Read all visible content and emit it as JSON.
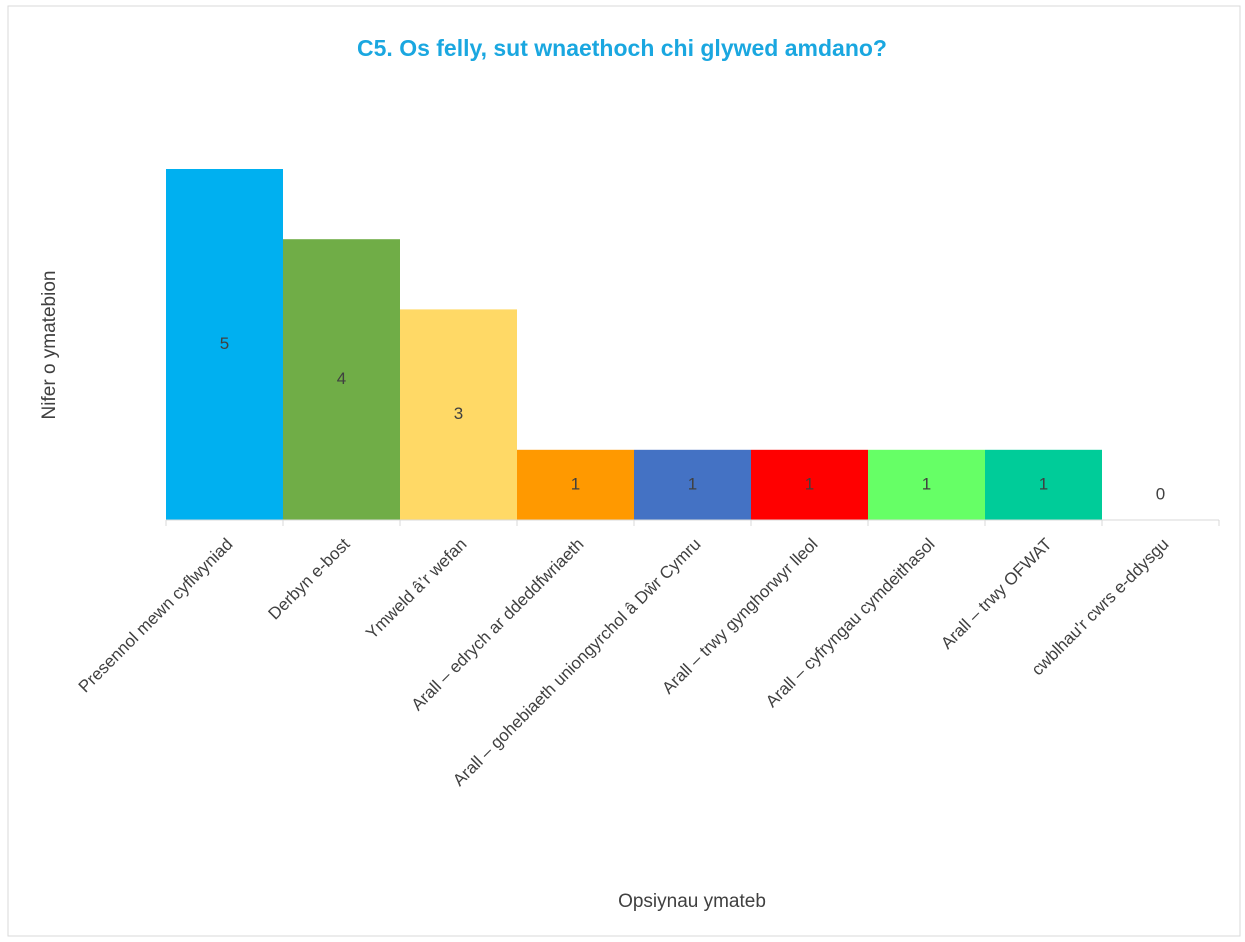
{
  "chart_data": {
    "type": "bar",
    "title": "C5. Os felly, sut wnaethoch chi glywed amdano?",
    "x_label": "Opsiynau ymateb",
    "y_label": "Nifer o ymatebion",
    "categories": [
      "Presennol mewn cyflwyniad",
      "Derbyn e-bost",
      "Ymweld â’r wefan",
      "Arall – edrych ar ddeddfwriaeth",
      "Arall – gohebiaeth uniongyrchol â Dŵr Cymru",
      "Arall – trwy gynghorwyr lleol",
      "Arall – cyfryngau cymdeithasol",
      "Arall – trwy OFWAT",
      "cwblhau'r cwrs e-ddysgu"
    ],
    "values": [
      5,
      4,
      3,
      1,
      1,
      1,
      1,
      1,
      0
    ],
    "colors": [
      "#00b0f0",
      "#70ad47",
      "#ffd966",
      "#ff9900",
      "#4472c4",
      "#ff0000",
      "#66ff66",
      "#00cc99",
      "#a5a5a5"
    ],
    "ylim": [
      0,
      5
    ]
  }
}
